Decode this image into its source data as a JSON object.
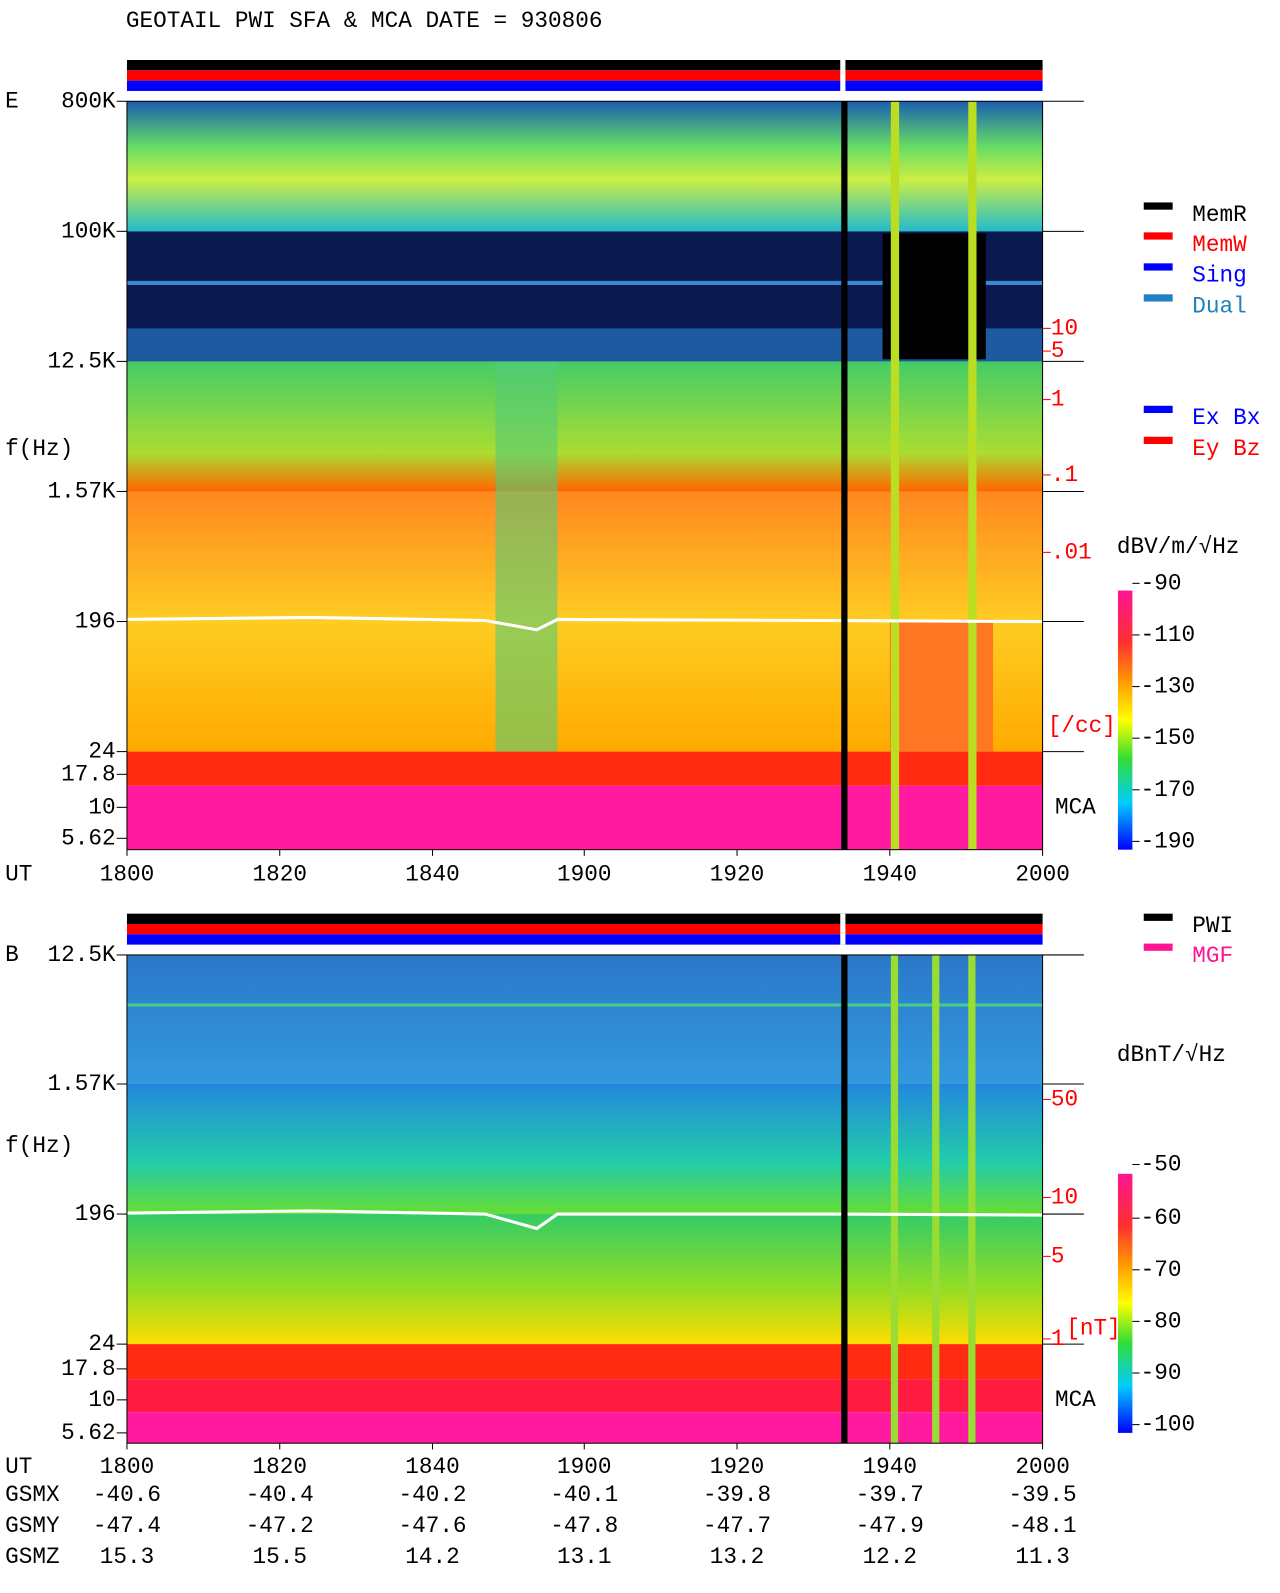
{
  "title": "GEOTAIL  PWI SFA & MCA   DATE = 930806",
  "panels": [
    {
      "component": "E",
      "ylabel": "f(Hz)",
      "xlabel": "UT",
      "yticks": [
        "800K",
        "100K",
        "12.5K",
        "1.57K",
        "196",
        "24",
        "17.8",
        "10",
        "5.62"
      ],
      "xticks": [
        "1800",
        "1820",
        "1840",
        "1900",
        "1920",
        "1940",
        "2000"
      ],
      "unit": "dBV/m/√Hz",
      "colorbar_ticks": [
        "-90",
        "-110",
        "-130",
        "-150",
        "-170",
        "-190"
      ],
      "density_ticks": [
        "10",
        "5",
        "1",
        ".1",
        ".01"
      ],
      "density_unit": "[/cc]",
      "mca": "MCA",
      "legend": [
        {
          "name": "MemR",
          "color": "#000000"
        },
        {
          "name": "MemW",
          "color": "#ff0000"
        },
        {
          "name": "Sing",
          "color": "#0000ff"
        },
        {
          "name": "Dual",
          "color": "#2080c0"
        },
        {
          "name": "Ex Bx",
          "color": "#0000ff"
        },
        {
          "name": "Ey Bz",
          "color": "#ff0000"
        }
      ]
    },
    {
      "component": "B",
      "ylabel": "f(Hz)",
      "xlabel": "UT",
      "yticks": [
        "12.5K",
        "1.57K",
        "196",
        "24",
        "17.8",
        "10",
        "5.62"
      ],
      "xticks": [
        "1800",
        "1820",
        "1840",
        "1900",
        "1920",
        "1940",
        "2000"
      ],
      "unit": "dBnT/√Hz",
      "colorbar_ticks": [
        "-50",
        "-60",
        "-70",
        "-80",
        "-90",
        "-100"
      ],
      "density_ticks": [
        "50",
        "10",
        "5",
        "1"
      ],
      "density_unit": "[nT]",
      "mca": "MCA",
      "legend": [
        {
          "name": "PWI",
          "color": "#000000"
        },
        {
          "name": "MGF",
          "color": "#ff1493"
        }
      ]
    }
  ],
  "orbit": [
    {
      "label": "GSMX",
      "values": [
        "-40.6",
        "-40.4",
        "-40.2",
        "-40.1",
        "-39.8",
        "-39.7",
        "-39.5"
      ]
    },
    {
      "label": "GSMY",
      "values": [
        "-47.4",
        "-47.2",
        "-47.6",
        "-47.8",
        "-47.7",
        "-47.9",
        "-48.1"
      ]
    },
    {
      "label": "GSMZ",
      "values": [
        "15.3",
        "15.5",
        "14.2",
        "13.1",
        "13.2",
        "12.2",
        "11.3"
      ]
    }
  ]
}
